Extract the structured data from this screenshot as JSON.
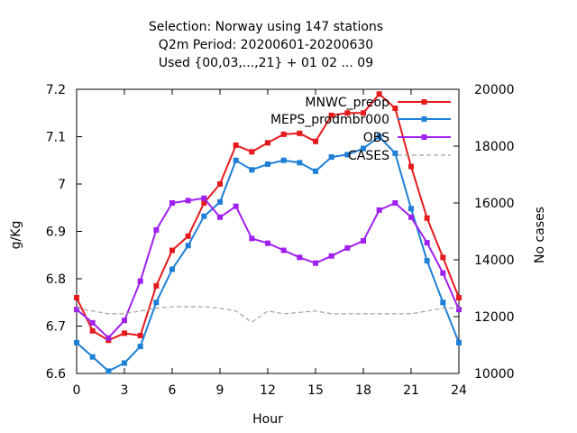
{
  "chart_data": {
    "type": "line",
    "title_lines": [
      "Selection: Norway using   147 stations",
      "Q2m   Period: 20200601-20200630",
      "Used {00,03,...,21} + 01 02 ... 09"
    ],
    "xlabel": "Hour",
    "ylabel": "g/Kg",
    "y2label": "No cases",
    "xlim": [
      0,
      24
    ],
    "ylim": [
      6.6,
      7.2
    ],
    "y2lim": [
      10000,
      20000
    ],
    "xticks": [
      "0",
      "3",
      "6",
      "9",
      "12",
      "15",
      "18",
      "21",
      "24"
    ],
    "yticks": [
      "6.6",
      "6.7",
      "6.8",
      "6.9",
      "7",
      "7.1",
      "7.2"
    ],
    "y2ticks": [
      "10000",
      "12000",
      "14000",
      "16000",
      "18000",
      "20000"
    ],
    "x": [
      0,
      1,
      2,
      3,
      4,
      5,
      6,
      7,
      8,
      9,
      10,
      11,
      12,
      13,
      14,
      15,
      16,
      17,
      18,
      19,
      20,
      21,
      22,
      23,
      24
    ],
    "series": [
      {
        "name": "MNWC_preop",
        "color": "#e41a1c",
        "axis": "y",
        "marker": "square",
        "values": [
          6.76,
          6.69,
          6.67,
          6.685,
          6.68,
          6.785,
          6.86,
          6.89,
          6.96,
          7.0,
          7.082,
          7.068,
          7.087,
          7.105,
          7.107,
          7.09,
          7.145,
          7.15,
          7.15,
          7.19,
          7.16,
          7.037,
          6.928,
          6.845,
          6.76
        ]
      },
      {
        "name": "MEPS_prodmbr000",
        "color": "#1e7fd6",
        "axis": "y",
        "marker": "square",
        "values": [
          6.665,
          6.635,
          6.605,
          6.622,
          6.657,
          6.75,
          6.82,
          6.87,
          6.932,
          6.962,
          7.05,
          7.03,
          7.042,
          7.05,
          7.045,
          7.027,
          7.057,
          7.062,
          7.075,
          7.1,
          7.065,
          6.948,
          6.838,
          6.75,
          6.665
        ]
      },
      {
        "name": "OBS",
        "color": "#a020f0",
        "axis": "y",
        "marker": "square",
        "values": [
          6.735,
          6.707,
          6.675,
          6.712,
          6.795,
          6.903,
          6.96,
          6.965,
          6.97,
          6.93,
          6.953,
          6.885,
          6.875,
          6.86,
          6.845,
          6.833,
          6.848,
          6.865,
          6.88,
          6.945,
          6.96,
          6.93,
          6.876,
          6.812,
          6.735
        ]
      },
      {
        "name": "CASES",
        "color": "#a0a0a0",
        "axis": "y2",
        "dashed": true,
        "values": [
          12300,
          12200,
          12100,
          12100,
          12200,
          12300,
          12350,
          12350,
          12350,
          12300,
          12200,
          11800,
          12200,
          12100,
          12150,
          12200,
          12100,
          12100,
          12100,
          12100,
          12100,
          12100,
          12200,
          12300,
          12300
        ]
      }
    ],
    "legend": "top-right",
    "grid": false
  }
}
